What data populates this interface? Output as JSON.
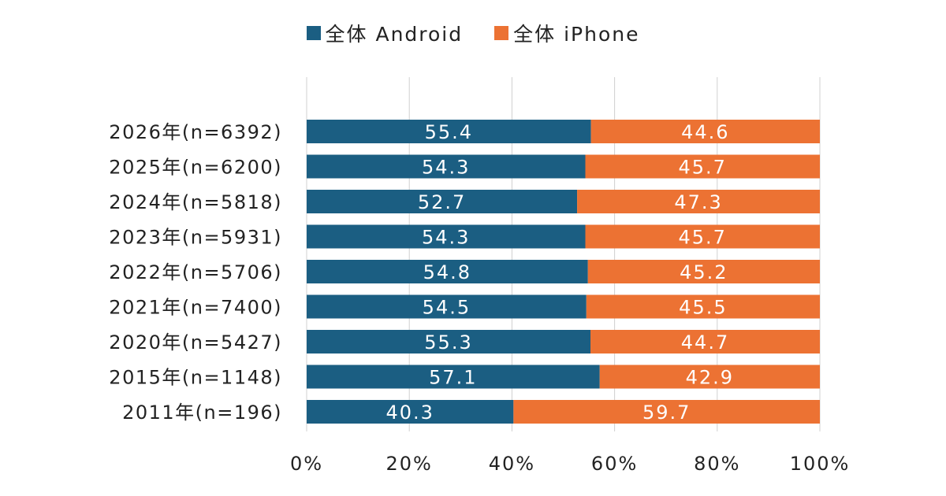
{
  "chart_data": {
    "type": "bar",
    "orientation": "horizontal",
    "stacked": "percent",
    "categories": [
      "2026年(n=6392)",
      "2025年(n=6200)",
      "2024年(n=5818)",
      "2023年(n=5931)",
      "2022年(n=5706)",
      "2021年(n=7400)",
      "2020年(n=5427)",
      "2015年(n=1148)",
      "2011年(n=196)"
    ],
    "series": [
      {
        "name": "全体 Android",
        "color": "#1b5e82",
        "values": [
          55.4,
          54.3,
          52.7,
          54.3,
          54.8,
          54.5,
          55.3,
          57.1,
          40.3
        ]
      },
      {
        "name": "全体 iPhone",
        "color": "#ec7233",
        "values": [
          44.6,
          45.7,
          47.3,
          45.7,
          45.2,
          45.5,
          44.7,
          42.9,
          59.7
        ]
      }
    ],
    "xlim": [
      0,
      100
    ],
    "xticks": [
      "0%",
      "20%",
      "40%",
      "60%",
      "80%",
      "100%"
    ],
    "grid": true,
    "legend_position": "top"
  }
}
